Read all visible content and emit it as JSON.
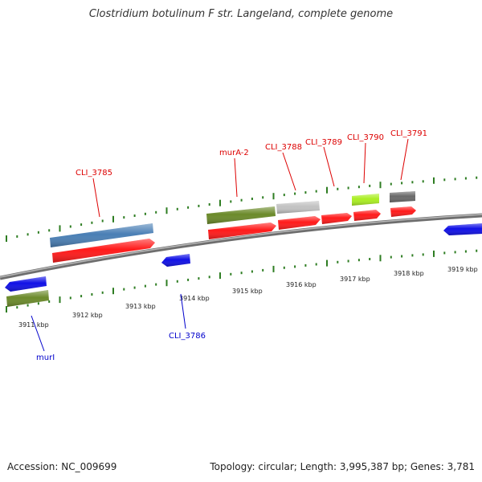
{
  "title": "Clostridium botulinum F str. Langeland, complete genome",
  "footer": {
    "accession": "Accession: NC_009699",
    "stats": "Topology: circular; Length: 3,995,387 bp; Genes: 3,781"
  },
  "colors": {
    "backbone": "#8a8a8a",
    "tick": "#2e7d22",
    "cds": "#ff1a1a",
    "forward_label": "#dd0000",
    "reverse_label": "#0000cc"
  },
  "kbp_labels": [
    "3911 kbp",
    "3912 kbp",
    "3913 kbp",
    "3914 kbp",
    "3915 kbp",
    "3916 kbp",
    "3917 kbp",
    "3918 kbp",
    "3919 kbp"
  ],
  "genes": [
    {
      "label": "CLI_3785",
      "strand": "forward"
    },
    {
      "label": "murA-2",
      "strand": "forward"
    },
    {
      "label": "CLI_3788",
      "strand": "forward"
    },
    {
      "label": "CLI_3789",
      "strand": "forward"
    },
    {
      "label": "CLI_3790",
      "strand": "forward"
    },
    {
      "label": "CLI_3791",
      "strand": "forward"
    },
    {
      "label": "CLI_3786",
      "strand": "reverse"
    },
    {
      "label": "murI",
      "strand": "reverse"
    }
  ]
}
